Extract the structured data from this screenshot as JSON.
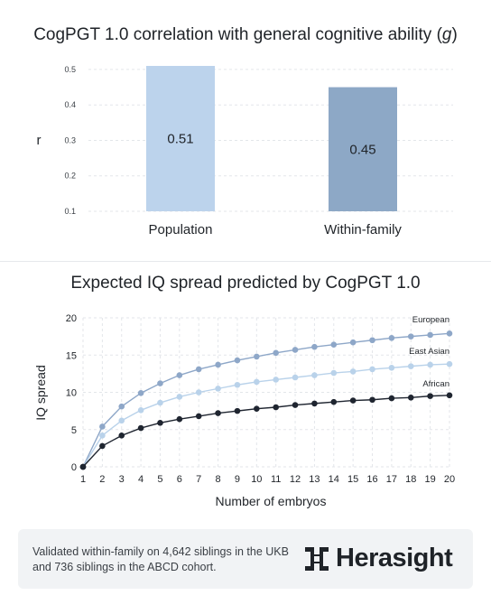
{
  "charts": {
    "correlation": {
      "title": "CogPGT 1.0 correlation with general cognitive ability (",
      "title_var": "g",
      "title_end": ")"
    },
    "iq_spread": {
      "title": "Expected IQ spread predicted by CogPGT 1.0"
    }
  },
  "chart_data": [
    {
      "type": "bar",
      "categories": [
        "Population",
        "Within-family"
      ],
      "values": [
        0.51,
        0.45
      ],
      "data_labels": [
        "0.51",
        "0.45"
      ],
      "ylabel": "r",
      "ylim": [
        0.1,
        0.51
      ],
      "yticks": [
        "0.1",
        "0.2",
        "0.3",
        "0.4",
        "0.5"
      ],
      "colors": [
        "#bcd3ec",
        "#8da8c6"
      ],
      "grid": true
    },
    {
      "type": "line",
      "title": "Expected IQ spread predicted by CogPGT 1.0",
      "xlabel": "Number of embryos",
      "ylabel": "IQ spread",
      "x": [
        1,
        2,
        3,
        4,
        5,
        6,
        7,
        8,
        9,
        10,
        11,
        12,
        13,
        14,
        15,
        16,
        17,
        18,
        19,
        20
      ],
      "ylim": [
        0,
        20
      ],
      "yticks": [
        0,
        5,
        10,
        15,
        20
      ],
      "grid": true,
      "series": [
        {
          "name": "European",
          "color": "#8ea7c8",
          "values": [
            0,
            5.4,
            8.1,
            9.9,
            11.2,
            12.3,
            13.1,
            13.7,
            14.3,
            14.8,
            15.3,
            15.7,
            16.1,
            16.4,
            16.7,
            17.0,
            17.3,
            17.5,
            17.7,
            17.9
          ]
        },
        {
          "name": "East Asian",
          "color": "#b9d2ea",
          "values": [
            0,
            4.2,
            6.2,
            7.6,
            8.6,
            9.4,
            10.0,
            10.5,
            11.0,
            11.4,
            11.7,
            12.0,
            12.3,
            12.6,
            12.8,
            13.1,
            13.3,
            13.5,
            13.7,
            13.8
          ]
        },
        {
          "name": "African",
          "color": "#1f2530",
          "values": [
            0,
            2.8,
            4.2,
            5.2,
            5.9,
            6.4,
            6.8,
            7.2,
            7.5,
            7.8,
            8.0,
            8.3,
            8.5,
            8.7,
            8.9,
            9.0,
            9.2,
            9.3,
            9.5,
            9.6
          ]
        }
      ]
    }
  ],
  "footer": {
    "text": "Validated within-family on 4,642 siblings in the UKB and 736 siblings in the ABCD cohort.",
    "brand": "Herasight",
    "logo_icon": "herasight-logo-icon"
  }
}
